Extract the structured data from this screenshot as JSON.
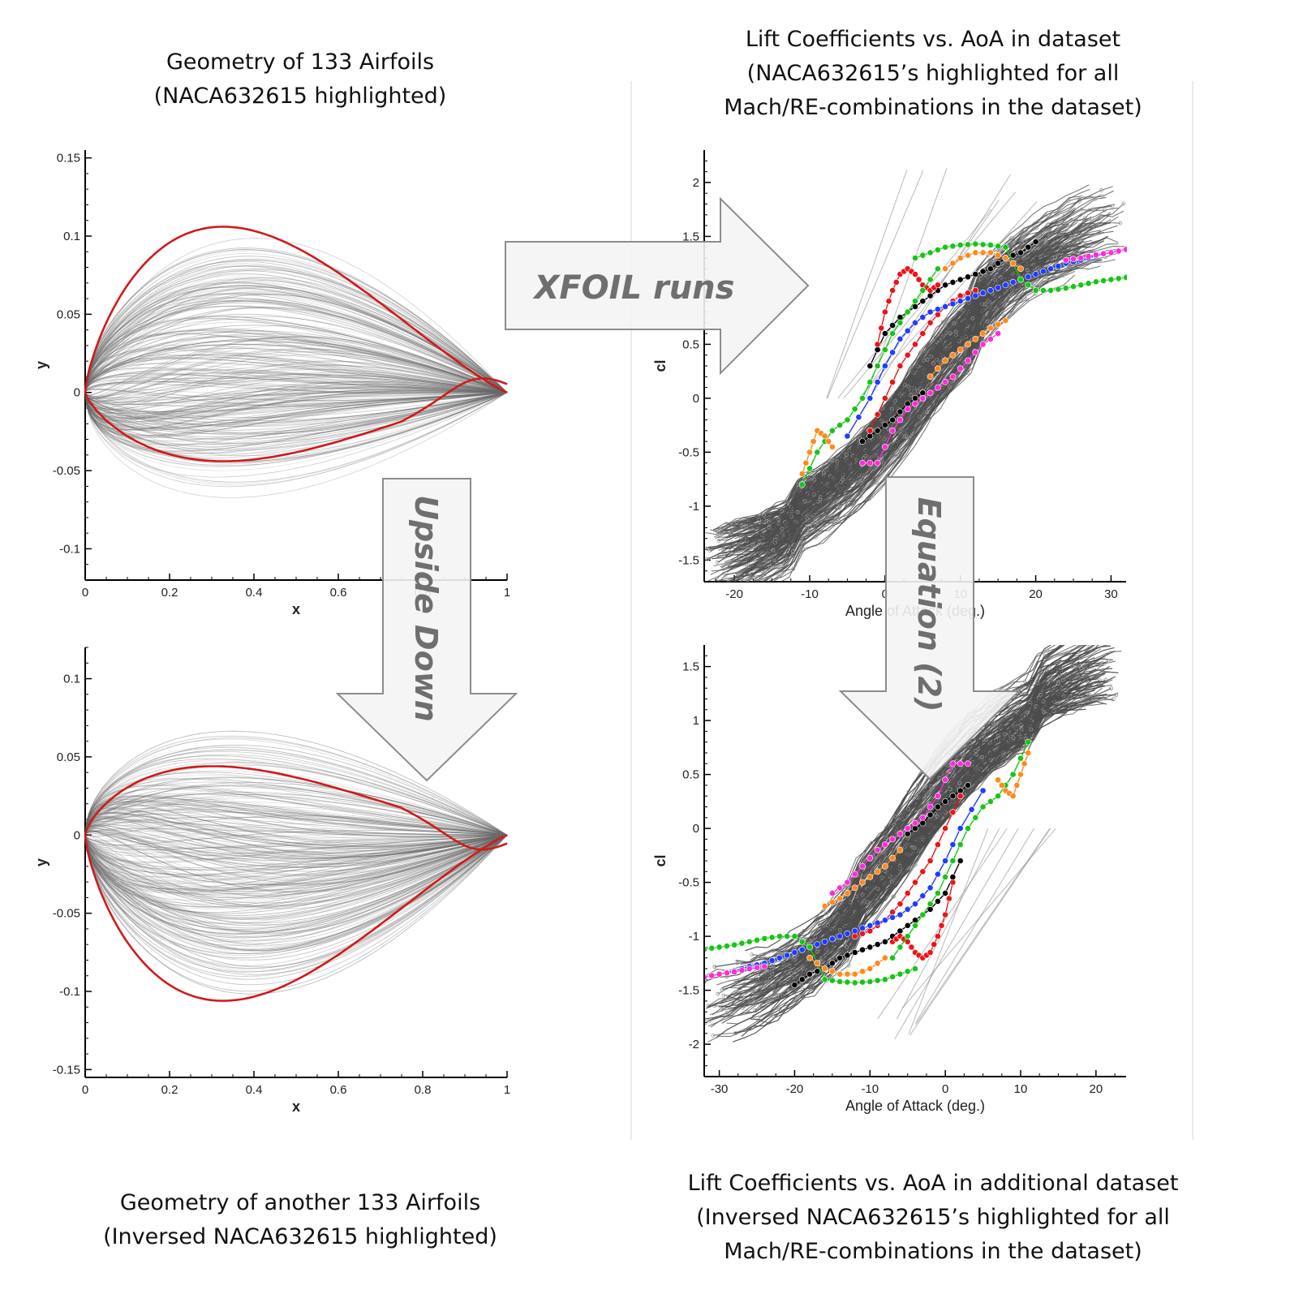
{
  "captions": {
    "top_left": [
      "Geometry of 133 Airfoils",
      "(NACA632615 highlighted)"
    ],
    "top_right": [
      "Lift Coefficients vs. AoA in dataset",
      "(NACA632615’s highlighted for all",
      "Mach/RE-combinations in the dataset)"
    ],
    "bottom_left": [
      "Geometry of another 133 Airfoils",
      "(Inversed NACA632615 highlighted)"
    ],
    "bottom_right": [
      "Lift Coefficients vs. AoA in additional dataset",
      "(Inversed NACA632615’s highlighted for all",
      "Mach/RE-combinations in the dataset)"
    ]
  },
  "arrows": {
    "xfoil": "XFOIL runs",
    "upside_down": "Upside Down",
    "equation": "Equation (2)"
  },
  "colors": {
    "highlight": "#d11a1a",
    "background_curves": "#555555",
    "series": [
      "#000000",
      "#e8151b",
      "#1f3cff",
      "#18c418",
      "#ff2bd8",
      "#ff8a1c"
    ],
    "arrow_fill": "#f4f4f4",
    "arrow_stroke": "#8c8c8c",
    "arrow_text": "#6f6f6f"
  },
  "chart_data": [
    {
      "type": "line",
      "id": "geometry_top",
      "xlabel": "x",
      "ylabel": "y",
      "xlim": [
        0,
        1
      ],
      "ylim": [
        -0.12,
        0.155
      ],
      "xticks": [
        "0",
        "0.2",
        "0.4",
        "0.6",
        "0.8",
        "1"
      ],
      "yticks": [
        "-0.1",
        "-0.05",
        "0",
        "0.05",
        "0.1",
        "0.15"
      ],
      "highlight": {
        "upper_max_y": 0.106,
        "upper_max_x": 0.36,
        "lower_min_y": -0.044,
        "lower_min_x": 0.38,
        "trailing_bump_y": 0.007
      },
      "background_count": 133
    },
    {
      "type": "line",
      "id": "geometry_bottom",
      "xlabel": "x",
      "ylabel": "y",
      "xlim": [
        0,
        1
      ],
      "ylim": [
        -0.155,
        0.12
      ],
      "xticks": [
        "0",
        "0.2",
        "0.4",
        "0.6",
        "0.8",
        "1"
      ],
      "yticks": [
        "-0.15",
        "-0.1",
        "-0.05",
        "0",
        "0.05",
        "0.1"
      ],
      "highlight": {
        "upper_max_y": 0.044,
        "upper_max_x": 0.32,
        "lower_min_y": -0.106,
        "lower_min_x": 0.38,
        "trailing_bump_y": -0.007
      },
      "background_count": 133
    },
    {
      "type": "scatter",
      "id": "cl_top",
      "xlabel": "Angle of Attack (deg.)",
      "ylabel": "cl",
      "xlim": [
        -24,
        32
      ],
      "ylim": [
        -1.7,
        2.3
      ],
      "xticks": [
        "-20",
        "-10",
        "0",
        "10",
        "20",
        "30"
      ],
      "yticks": [
        "-1.5",
        "-1",
        "-0.5",
        "0",
        "0.5",
        "1",
        "1.5",
        "2"
      ],
      "series": [
        {
          "color": "#000000",
          "x": [
            -2,
            0,
            2,
            4,
            6,
            8,
            10,
            12,
            14,
            16,
            18,
            20
          ],
          "y": [
            0.3,
            0.6,
            0.75,
            0.85,
            0.95,
            1.05,
            1.1,
            1.15,
            1.2,
            1.3,
            1.35,
            1.45
          ]
        },
        {
          "color": "#000000",
          "x": [
            -3,
            -1,
            1,
            3,
            5
          ],
          "y": [
            -0.4,
            -0.3,
            -0.2,
            -0.05,
            0.05
          ]
        },
        {
          "color": "#e8151b",
          "x": [
            -1,
            0,
            1,
            2,
            3,
            4,
            5,
            6,
            7
          ],
          "y": [
            0.5,
            0.8,
            1.0,
            1.15,
            1.2,
            1.15,
            1.05,
            1.0,
            1.05
          ]
        },
        {
          "color": "#e8151b",
          "x": [
            -2,
            0,
            2,
            4,
            6,
            8,
            10,
            12
          ],
          "y": [
            -0.3,
            0.0,
            0.3,
            0.5,
            0.7,
            0.85,
            0.95,
            1.0
          ]
        },
        {
          "color": "#1f3cff",
          "x": [
            -5,
            -2,
            0,
            2,
            4,
            6,
            8,
            10,
            12,
            14,
            16,
            18,
            20,
            22,
            24,
            26,
            28,
            30,
            32
          ],
          "y": [
            -0.35,
            0.0,
            0.3,
            0.55,
            0.7,
            0.8,
            0.85,
            0.9,
            0.95,
            1.0,
            1.05,
            1.1,
            1.15,
            1.2,
            1.25,
            1.28,
            1.32,
            1.35,
            1.38
          ]
        },
        {
          "color": "#18c418",
          "x": [
            -11,
            -9,
            -7,
            -5,
            -3,
            -1,
            1,
            3,
            5,
            7
          ],
          "y": [
            -0.8,
            -0.5,
            -0.3,
            -0.2,
            0.0,
            0.3,
            0.6,
            0.8,
            1.0,
            1.2
          ]
        },
        {
          "color": "#18c418",
          "x": [
            4,
            6,
            8,
            10,
            12,
            14,
            16,
            18,
            20,
            22,
            24,
            26,
            28,
            30,
            32
          ],
          "y": [
            1.3,
            1.35,
            1.4,
            1.42,
            1.43,
            1.42,
            1.4,
            1.1,
            1.0,
            1.0,
            1.02,
            1.05,
            1.08,
            1.1,
            1.12
          ]
        },
        {
          "color": "#ff2bd8",
          "x": [
            -3,
            -1,
            1,
            3,
            5,
            7,
            9,
            11,
            13,
            15
          ],
          "y": [
            -0.6,
            -0.6,
            -0.3,
            -0.1,
            0.0,
            0.1,
            0.2,
            0.35,
            0.5,
            0.6
          ]
        },
        {
          "color": "#ff2bd8",
          "x": [
            24,
            26,
            28,
            30,
            32
          ],
          "y": [
            1.28,
            1.3,
            1.33,
            1.35,
            1.38
          ]
        },
        {
          "color": "#ff8a1c",
          "x": [
            -11,
            -10,
            -9,
            -8,
            -7
          ],
          "y": [
            -0.7,
            -0.5,
            -0.3,
            -0.35,
            -0.45
          ]
        },
        {
          "color": "#ff8a1c",
          "x": [
            6,
            8,
            10,
            12,
            14,
            16
          ],
          "y": [
            0.2,
            0.35,
            0.45,
            0.55,
            0.65,
            0.72
          ]
        },
        {
          "color": "#ff8a1c",
          "x": [
            8,
            10,
            12,
            14,
            16,
            18
          ],
          "y": [
            1.2,
            1.3,
            1.35,
            1.35,
            1.3,
            1.2
          ]
        }
      ]
    },
    {
      "type": "scatter",
      "id": "cl_bottom",
      "xlabel": "Angle of Attack (deg.)",
      "ylabel": "cl",
      "xlim": [
        -32,
        24
      ],
      "ylim": [
        -2.3,
        1.7
      ],
      "xticks": [
        "-30",
        "-20",
        "-10",
        "0",
        "10",
        "20"
      ],
      "yticks": [
        "-2",
        "-1.5",
        "-1",
        "-0.5",
        "0",
        "0.5",
        "1",
        "1.5"
      ],
      "series": [
        {
          "color": "#000000",
          "x": [
            -20,
            -18,
            -16,
            -14,
            -12,
            -10,
            -8,
            -6,
            -4,
            -2,
            0,
            2
          ],
          "y": [
            -1.45,
            -1.35,
            -1.3,
            -1.2,
            -1.15,
            -1.1,
            -1.05,
            -0.95,
            -0.85,
            -0.75,
            -0.6,
            -0.3
          ]
        },
        {
          "color": "#000000",
          "x": [
            -5,
            -3,
            -1,
            1,
            3
          ],
          "y": [
            -0.05,
            0.05,
            0.2,
            0.3,
            0.4
          ]
        },
        {
          "color": "#e8151b",
          "x": [
            -7,
            -6,
            -5,
            -4,
            -3,
            -2,
            -1,
            0,
            1
          ],
          "y": [
            -1.05,
            -1.0,
            -1.05,
            -1.15,
            -1.2,
            -1.15,
            -1.0,
            -0.8,
            -0.5
          ]
        },
        {
          "color": "#e8151b",
          "x": [
            -12,
            -10,
            -8,
            -6,
            -4,
            -2,
            0,
            2
          ],
          "y": [
            -1.0,
            -0.95,
            -0.85,
            -0.7,
            -0.5,
            -0.3,
            0.0,
            0.3
          ]
        },
        {
          "color": "#1f3cff",
          "x": [
            -32,
            -30,
            -28,
            -26,
            -24,
            -22,
            -20,
            -18,
            -16,
            -14,
            -12,
            -10,
            -8,
            -6,
            -4,
            -2,
            0,
            2,
            5
          ],
          "y": [
            -1.38,
            -1.35,
            -1.32,
            -1.28,
            -1.25,
            -1.2,
            -1.15,
            -1.1,
            -1.05,
            -1.0,
            -0.95,
            -0.9,
            -0.85,
            -0.8,
            -0.7,
            -0.55,
            -0.3,
            0.0,
            0.35
          ]
        },
        {
          "color": "#18c418",
          "x": [
            -7,
            -5,
            -3,
            -1,
            1,
            3,
            5,
            7,
            9,
            11
          ],
          "y": [
            -1.2,
            -1.0,
            -0.8,
            -0.6,
            -0.3,
            0.0,
            0.2,
            0.3,
            0.5,
            0.8
          ]
        },
        {
          "color": "#18c418",
          "x": [
            -32,
            -30,
            -28,
            -26,
            -24,
            -22,
            -20,
            -18,
            -16,
            -14,
            -12,
            -10,
            -8,
            -6,
            -4
          ],
          "y": [
            -1.12,
            -1.1,
            -1.08,
            -1.05,
            -1.02,
            -1.0,
            -1.0,
            -1.1,
            -1.4,
            -1.42,
            -1.43,
            -1.42,
            -1.4,
            -1.35,
            -1.3
          ]
        },
        {
          "color": "#ff2bd8",
          "x": [
            -15,
            -13,
            -11,
            -9,
            -7,
            -5,
            -3,
            -1,
            1,
            3
          ],
          "y": [
            -0.6,
            -0.5,
            -0.35,
            -0.2,
            -0.1,
            0.0,
            0.1,
            0.3,
            0.6,
            0.6
          ]
        },
        {
          "color": "#ff2bd8",
          "x": [
            -32,
            -30,
            -28,
            -26,
            -24
          ],
          "y": [
            -1.38,
            -1.35,
            -1.33,
            -1.3,
            -1.28
          ]
        },
        {
          "color": "#ff8a1c",
          "x": [
            7,
            8,
            9,
            10,
            11
          ],
          "y": [
            0.45,
            0.35,
            0.3,
            0.5,
            0.7
          ]
        },
        {
          "color": "#ff8a1c",
          "x": [
            -16,
            -14,
            -12,
            -10,
            -8,
            -6
          ],
          "y": [
            -0.72,
            -0.65,
            -0.55,
            -0.45,
            -0.35,
            -0.2
          ]
        },
        {
          "color": "#ff8a1c",
          "x": [
            -18,
            -16,
            -14,
            -12,
            -10,
            -8
          ],
          "y": [
            -1.2,
            -1.3,
            -1.35,
            -1.35,
            -1.3,
            -1.2
          ]
        }
      ]
    }
  ]
}
